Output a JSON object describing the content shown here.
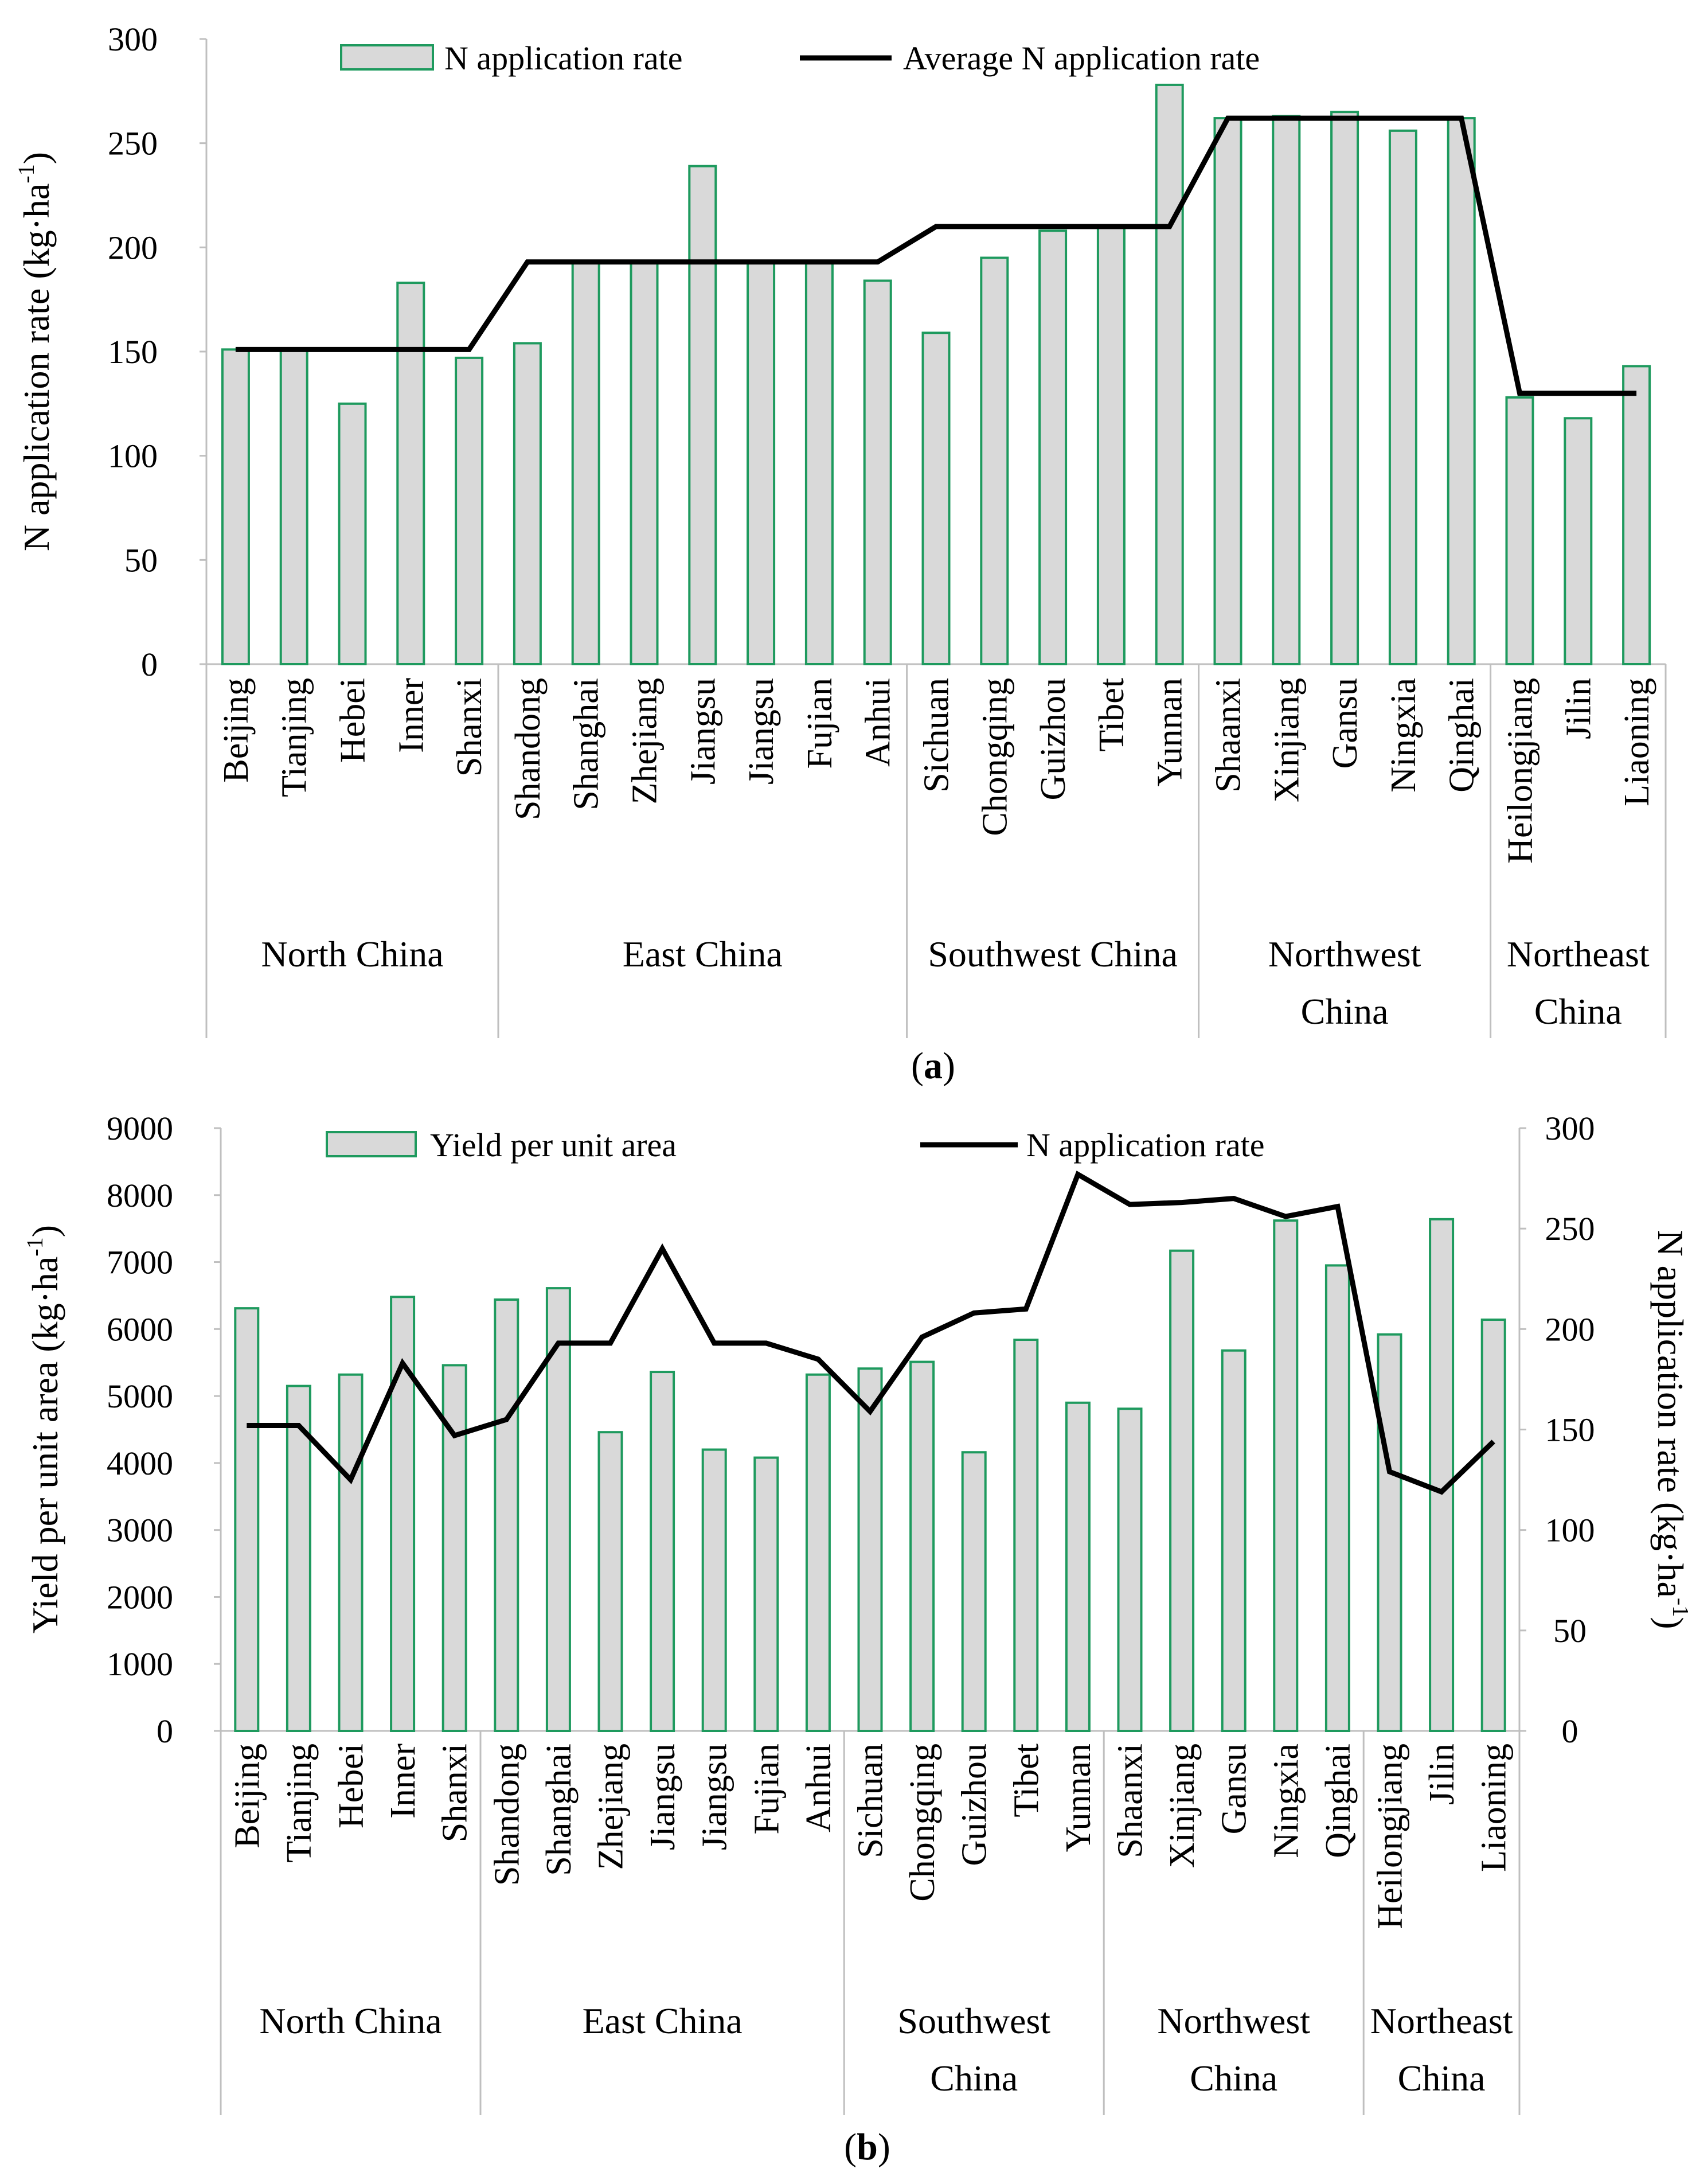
{
  "chart_data": [
    {
      "id": "a",
      "type": "bar",
      "panel_label": "a",
      "categories": [
        "Beijing",
        "Tianjing",
        "Hebei",
        "Inner",
        "Shanxi",
        "Shandong",
        "Shanghai",
        "Zhejiang",
        "Jiangsu",
        "Jiangsu",
        "Fujian",
        "Anhui",
        "Sichuan",
        "Chongqing",
        "Guizhou",
        "Tibet",
        "Yunnan",
        "Shaanxi",
        "Xinjiang",
        "Gansu",
        "Ningxia",
        "Qinghai",
        "Heilongjiang",
        "Jilin",
        "Liaoning"
      ],
      "groups": [
        {
          "name": "North China",
          "lines": [
            "North China"
          ],
          "count": 5
        },
        {
          "name": "East China",
          "lines": [
            "East China"
          ],
          "count": 7
        },
        {
          "name": "Southwest China",
          "lines": [
            "Southwest China"
          ],
          "count": 5
        },
        {
          "name": "Northwest China",
          "lines": [
            "Northwest",
            "China"
          ],
          "count": 5
        },
        {
          "name": "Northeast China",
          "lines": [
            "Northeast",
            "China"
          ],
          "count": 3
        }
      ],
      "series": [
        {
          "name": "N application rate",
          "kind": "bar",
          "values": [
            151,
            151,
            125,
            183,
            147,
            154,
            193,
            193,
            239,
            193,
            193,
            184,
            159,
            195,
            208,
            210,
            278,
            262,
            263,
            265,
            256,
            262,
            128,
            118,
            143
          ]
        },
        {
          "name": "Average N application rate",
          "kind": "line",
          "values": [
            151,
            151,
            151,
            151,
            151,
            193,
            193,
            193,
            193,
            193,
            193,
            193,
            210,
            210,
            210,
            210,
            210,
            262,
            262,
            262,
            262,
            262,
            130,
            130,
            130
          ]
        }
      ],
      "ylabel": "N application rate (kg·ha",
      "ylabel_sup": "-1",
      "ylabel_tail": ")",
      "ylim": [
        0,
        300
      ],
      "yticks": [
        0,
        50,
        100,
        150,
        200,
        250,
        300
      ],
      "legend": [
        "N application rate",
        "Average N application rate"
      ],
      "legend_position": "top"
    },
    {
      "id": "b",
      "type": "bar",
      "panel_label": "b",
      "categories": [
        "Beijing",
        "Tianjing",
        "Hebei",
        "Inner",
        "Shanxi",
        "Shandong",
        "Shanghai",
        "Zhejiang",
        "Jiangsu",
        "Jiangsu",
        "Fujian",
        "Anhui",
        "Sichuan",
        "Chongqing",
        "Guizhou",
        "Tibet",
        "Yunnan",
        "Shaanxi",
        "Xinjiang",
        "Gansu",
        "Ningxia",
        "Qinghai",
        "Heilongjiang",
        "Jilin",
        "Liaoning"
      ],
      "groups": [
        {
          "name": "North China",
          "lines": [
            "North China"
          ],
          "count": 5
        },
        {
          "name": "East China",
          "lines": [
            "East China"
          ],
          "count": 7
        },
        {
          "name": "Southwest China",
          "lines": [
            "Southwest",
            "China"
          ],
          "count": 5
        },
        {
          "name": "Northwest China",
          "lines": [
            "Northwest",
            "China"
          ],
          "count": 5
        },
        {
          "name": "Northeast China",
          "lines": [
            "Northeast",
            "China"
          ],
          "count": 3
        }
      ],
      "series": [
        {
          "name": "Yield per unit area",
          "kind": "bar",
          "axis": "left",
          "values": [
            6310,
            5150,
            5320,
            6480,
            5460,
            6440,
            6610,
            4460,
            5360,
            4200,
            4080,
            5320,
            5410,
            5510,
            4160,
            5840,
            4900,
            4810,
            7170,
            5680,
            7620,
            6950,
            5920,
            7640,
            6140
          ]
        },
        {
          "name": "N application rate",
          "kind": "line",
          "axis": "right",
          "values": [
            152,
            152,
            125,
            183,
            147,
            155,
            193,
            193,
            240,
            193,
            193,
            185,
            159,
            196,
            208,
            210,
            277,
            262,
            263,
            265,
            256,
            261,
            129,
            119,
            144
          ]
        }
      ],
      "ylabel": "Yield per unit area (kg·ha",
      "ylabel_sup": "-1",
      "ylabel_tail": ")",
      "ylim": [
        0,
        9000
      ],
      "yticks": [
        0,
        1000,
        2000,
        3000,
        4000,
        5000,
        6000,
        7000,
        8000,
        9000
      ],
      "y2label": "N application rate (kg·ha",
      "y2label_sup": "-1",
      "y2label_tail": ")",
      "y2lim": [
        0,
        300
      ],
      "y2ticks": [
        0,
        50,
        100,
        150,
        200,
        250,
        300
      ],
      "legend": [
        "Yield per unit area",
        "N application rate"
      ],
      "legend_position": "top"
    }
  ]
}
